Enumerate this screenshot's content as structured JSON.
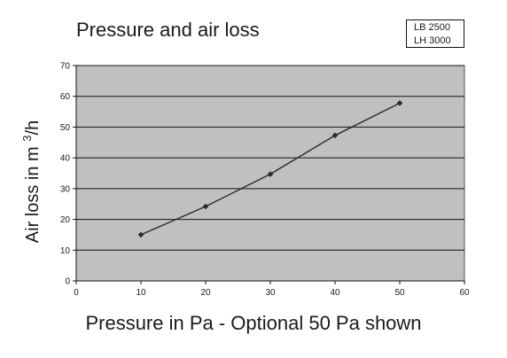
{
  "chart_data": {
    "type": "line",
    "title": "Pressure and air loss",
    "legend": [
      "LB  2500",
      "LH  3000"
    ],
    "legend_position": "top-right",
    "xlabel": "Pressure in Pa - Optional 50 Pa shown",
    "ylabel_main": "Air loss in m ",
    "ylabel_sup": "3",
    "ylabel_tail": "/h",
    "xlim": [
      0,
      60
    ],
    "ylim": [
      0,
      70
    ],
    "xticks": [
      "0",
      "10",
      "20",
      "30",
      "40",
      "50",
      "60"
    ],
    "yticks": [
      "0",
      "10",
      "20",
      "30",
      "40",
      "50",
      "60",
      "70"
    ],
    "grid": "horizontal",
    "plot_background": "#c0c0c0",
    "line_color": "#2a2a2a",
    "marker": "diamond",
    "series": [
      {
        "x": [
          10,
          20,
          30,
          40,
          50
        ],
        "y": [
          15,
          24.2,
          34.7,
          47.3,
          57.8
        ]
      }
    ]
  }
}
